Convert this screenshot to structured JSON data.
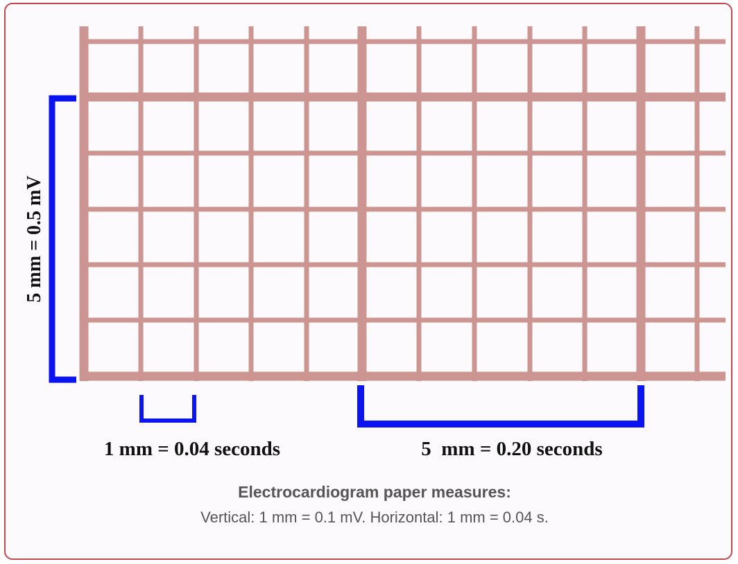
{
  "labels": {
    "vertical": "5 mm = 0.5 mV",
    "small_horizontal": "1 mm = 0.04 seconds",
    "large_horizontal": "5  mm = 0.20 seconds"
  },
  "caption": {
    "title": "Electrocardiogram paper measures:",
    "text": "Vertical: 1 mm = 0.1 mV. Horizontal: 1 mm = 0.04 s."
  }
}
